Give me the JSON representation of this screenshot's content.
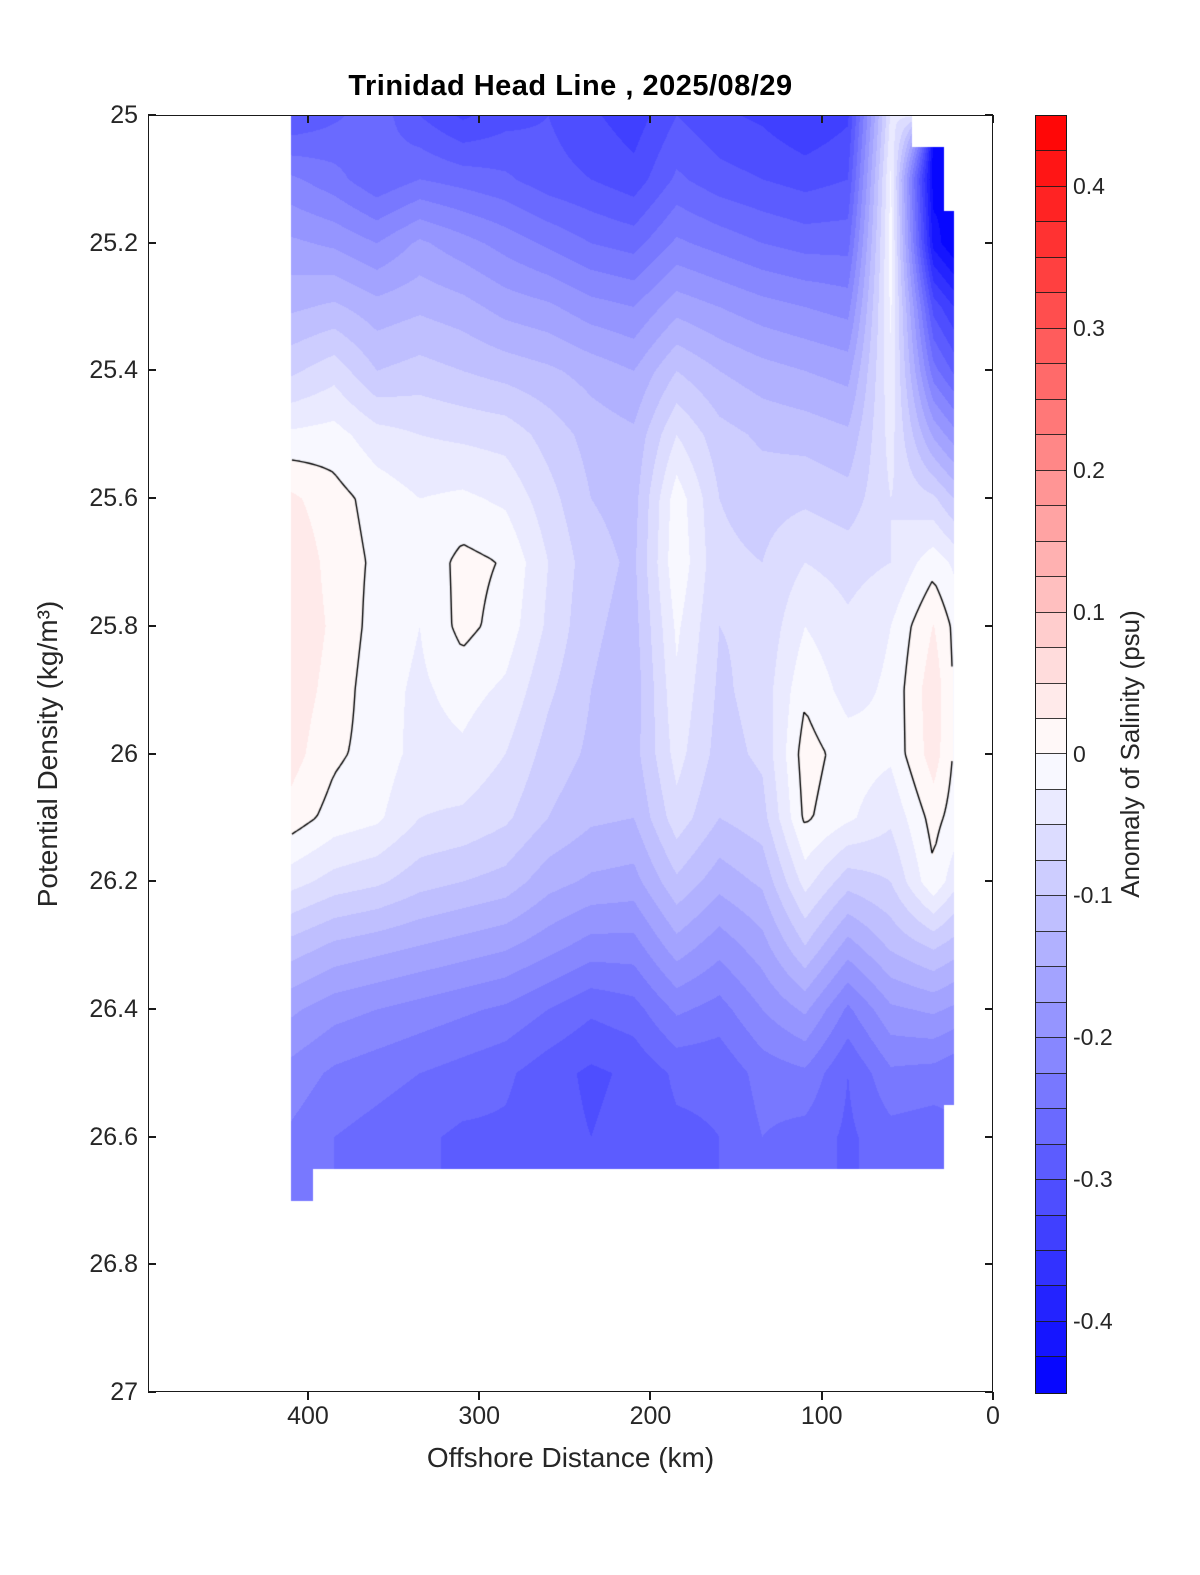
{
  "title": "Trinidad Head Line , 2025/08/29",
  "axes": {
    "xlabel": "Offshore Distance (km)",
    "ylabel": "Potential Density (kg/m³)",
    "x_ticks": [
      {
        "value": 400,
        "label": "400"
      },
      {
        "value": 300,
        "label": "300"
      },
      {
        "value": 200,
        "label": "200"
      },
      {
        "value": 100,
        "label": "100"
      },
      {
        "value": 0,
        "label": "0"
      }
    ],
    "x_direction": "reversed",
    "x_range_km": [
      0,
      493
    ],
    "y_ticks": [
      {
        "value": 25.0,
        "label": "25"
      },
      {
        "value": 25.2,
        "label": "25.2"
      },
      {
        "value": 25.4,
        "label": "25.4"
      },
      {
        "value": 25.6,
        "label": "25.6"
      },
      {
        "value": 25.8,
        "label": "25.8"
      },
      {
        "value": 26.0,
        "label": "26"
      },
      {
        "value": 26.2,
        "label": "26.2"
      },
      {
        "value": 26.4,
        "label": "26.4"
      },
      {
        "value": 26.6,
        "label": "26.6"
      },
      {
        "value": 26.8,
        "label": "26.8"
      },
      {
        "value": 27.0,
        "label": "27"
      }
    ],
    "y_range": [
      25,
      27
    ]
  },
  "colorbar": {
    "label": "Anomaly of Salinity (psu)",
    "min": -0.45,
    "max": 0.45,
    "step": 0.025,
    "positive_color": "#ff0000",
    "negative_color": "#0000ff",
    "zero_color": "#ffffff",
    "ticks": [
      {
        "value": 0.4,
        "label": "0.4"
      },
      {
        "value": 0.3,
        "label": "0.3"
      },
      {
        "value": 0.2,
        "label": "0.2"
      },
      {
        "value": 0.1,
        "label": "0.1"
      },
      {
        "value": 0.0,
        "label": "0"
      },
      {
        "value": -0.1,
        "label": "-0.1"
      },
      {
        "value": -0.2,
        "label": "-0.2"
      },
      {
        "value": -0.3,
        "label": "-0.3"
      },
      {
        "value": -0.4,
        "label": "-0.4"
      }
    ]
  },
  "chart_data": {
    "type": "heatmap",
    "subtype": "filled-contour-section",
    "title": "Trinidad Head Line , 2025/08/29",
    "xlabel": "Offshore Distance (km)",
    "ylabel": "Potential Density (kg/m³)",
    "value_label": "Anomaly of Salinity (psu)",
    "contour_interval": 0.025,
    "value_range": [
      -0.45,
      0.45
    ],
    "zero_contour_line_color": "#000000",
    "x_stations_km": [
      410,
      385,
      360,
      335,
      310,
      285,
      260,
      235,
      210,
      185,
      160,
      135,
      110,
      85,
      60,
      35,
      23
    ],
    "sigma_levels": [
      25.0,
      25.1,
      25.2,
      25.3,
      25.4,
      25.5,
      25.6,
      25.7,
      25.8,
      25.9,
      26.0,
      26.1,
      26.2,
      26.3,
      26.4,
      26.5,
      26.6,
      26.7
    ],
    "values_station_by_sigma": [
      [
        -0.3,
        -0.22,
        -0.17,
        -0.13,
        -0.08,
        -0.02,
        0.03,
        0.045,
        0.045,
        0.04,
        0.035,
        0.015,
        -0.04,
        -0.11,
        -0.17,
        -0.21,
        -0.23,
        -0.24
      ],
      [
        -0.28,
        -0.24,
        -0.18,
        -0.12,
        -0.06,
        -0.015,
        0.01,
        0.015,
        0.02,
        0.015,
        0.005,
        -0.01,
        -0.06,
        -0.13,
        -0.19,
        -0.23,
        -0.25,
        null
      ],
      [
        -0.26,
        -0.27,
        -0.2,
        -0.14,
        -0.1,
        -0.04,
        -0.01,
        -0.005,
        -0.01,
        -0.015,
        -0.01,
        -0.02,
        -0.07,
        -0.14,
        -0.2,
        -0.24,
        -0.26,
        null
      ],
      [
        -0.3,
        -0.25,
        -0.17,
        -0.13,
        -0.09,
        -0.05,
        -0.025,
        -0.02,
        -0.025,
        -0.03,
        -0.035,
        -0.05,
        -0.09,
        -0.15,
        -0.21,
        -0.25,
        -0.27,
        null
      ],
      [
        -0.33,
        -0.26,
        -0.19,
        -0.14,
        -0.1,
        -0.055,
        -0.02,
        0.008,
        0.008,
        -0.015,
        -0.03,
        -0.055,
        -0.1,
        -0.16,
        -0.22,
        -0.26,
        -0.28,
        null
      ],
      [
        -0.31,
        -0.27,
        -0.21,
        -0.16,
        -0.11,
        -0.06,
        -0.03,
        -0.002,
        -0.01,
        -0.03,
        -0.05,
        -0.07,
        -0.11,
        -0.17,
        -0.23,
        -0.27,
        -0.28,
        null
      ],
      [
        -0.3,
        -0.29,
        -0.23,
        -0.17,
        -0.12,
        -0.085,
        -0.065,
        -0.05,
        -0.055,
        -0.07,
        -0.085,
        -0.1,
        -0.14,
        -0.19,
        -0.25,
        -0.29,
        -0.29,
        null
      ],
      [
        -0.32,
        -0.3,
        -0.25,
        -0.19,
        -0.135,
        -0.11,
        -0.1,
        -0.09,
        -0.095,
        -0.1,
        -0.105,
        -0.12,
        -0.155,
        -0.21,
        -0.27,
        -0.305,
        -0.3,
        null
      ],
      [
        -0.34,
        -0.315,
        -0.26,
        -0.2,
        -0.15,
        -0.12,
        -0.11,
        -0.105,
        -0.11,
        -0.115,
        -0.11,
        -0.125,
        -0.16,
        -0.21,
        -0.26,
        -0.295,
        -0.29,
        null
      ],
      [
        -0.3,
        -0.27,
        -0.22,
        -0.16,
        -0.1,
        -0.05,
        -0.01,
        -0.005,
        -0.02,
        -0.03,
        -0.04,
        -0.06,
        -0.105,
        -0.16,
        -0.22,
        -0.27,
        -0.28,
        null
      ],
      [
        -0.32,
        -0.29,
        -0.235,
        -0.175,
        -0.125,
        -0.09,
        -0.075,
        -0.07,
        -0.075,
        -0.08,
        -0.085,
        -0.1,
        -0.14,
        -0.19,
        -0.235,
        -0.27,
        -0.275,
        null
      ],
      [
        -0.33,
        -0.3,
        -0.25,
        -0.19,
        -0.14,
        -0.105,
        -0.085,
        -0.075,
        -0.07,
        -0.065,
        -0.07,
        -0.085,
        -0.12,
        -0.16,
        -0.2,
        -0.24,
        -0.25,
        null
      ],
      [
        -0.35,
        -0.31,
        -0.26,
        -0.2,
        -0.15,
        -0.11,
        -0.08,
        -0.05,
        -0.025,
        -0.005,
        0.012,
        0.005,
        -0.04,
        -0.1,
        -0.17,
        -0.23,
        -0.26,
        null
      ],
      [
        -0.33,
        -0.3,
        -0.26,
        -0.21,
        -0.16,
        -0.12,
        -0.09,
        -0.06,
        -0.045,
        -0.035,
        -0.012,
        -0.02,
        -0.09,
        -0.16,
        -0.23,
        -0.275,
        -0.28,
        null
      ],
      [
        -0.045,
        -0.02,
        -0.015,
        -0.02,
        -0.03,
        -0.04,
        -0.05,
        -0.05,
        -0.025,
        -0.02,
        -0.02,
        -0.045,
        -0.075,
        -0.12,
        -0.18,
        -0.23,
        -0.26,
        null
      ],
      [
        null,
        -0.44,
        -0.41,
        -0.31,
        -0.24,
        -0.155,
        -0.07,
        -0.01,
        0.026,
        0.042,
        0.038,
        0.01,
        -0.005,
        -0.095,
        -0.17,
        -0.235,
        -0.265,
        null
      ],
      [
        null,
        null,
        -0.45,
        -0.35,
        -0.28,
        -0.19,
        -0.1,
        -0.03,
        -0.005,
        -0.002,
        -0.002,
        -0.01,
        -0.04,
        -0.11,
        -0.18,
        -0.245,
        null,
        null
      ]
    ]
  }
}
